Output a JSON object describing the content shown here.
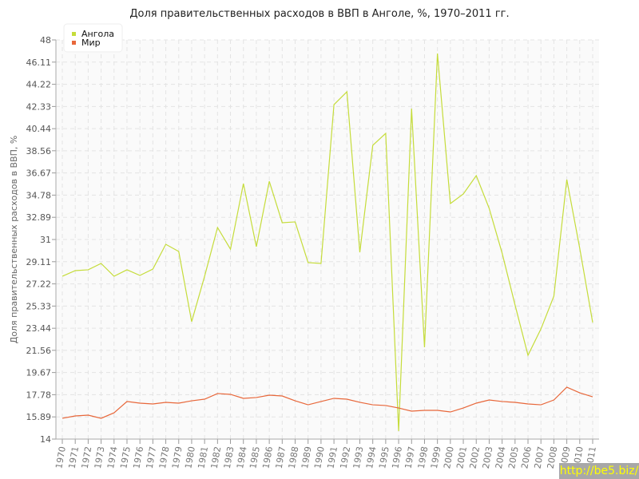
{
  "chart_data": {
    "type": "line",
    "title": "Доля правительственных расходов в ВВП в Анголе, %, 1970–2011 гг.",
    "xlabel": "",
    "ylabel": "Доля правительственных расходов в ВВП, %",
    "ylim": [
      14,
      48
    ],
    "yticks": [
      "14",
      "15.89",
      "17.78",
      "19.67",
      "21.56",
      "23.44",
      "25.33",
      "27.22",
      "29.11",
      "31",
      "32.89",
      "34.78",
      "36.67",
      "38.56",
      "40.44",
      "42.33",
      "44.22",
      "46.11",
      "48"
    ],
    "x": [
      1970,
      1971,
      1972,
      1973,
      1974,
      1975,
      1976,
      1977,
      1978,
      1979,
      1980,
      1981,
      1982,
      1983,
      1984,
      1985,
      1986,
      1987,
      1988,
      1989,
      1990,
      1991,
      1992,
      1993,
      1994,
      1995,
      1996,
      1997,
      1998,
      1999,
      2000,
      2001,
      2002,
      2003,
      2004,
      2005,
      2006,
      2007,
      2008,
      2009,
      2010,
      2011
    ],
    "grid": true,
    "legend_placement": "top-left",
    "series": [
      {
        "name": "Ангола",
        "color": "#c5dc3a",
        "values": [
          27.87,
          28.35,
          28.42,
          28.96,
          27.87,
          28.42,
          27.94,
          28.48,
          30.59,
          29.98,
          24.0,
          27.87,
          32.02,
          30.18,
          35.76,
          30.39,
          35.96,
          32.43,
          32.5,
          29.03,
          28.96,
          42.49,
          43.58,
          29.91,
          39.02,
          40.04,
          14.68,
          42.15,
          21.82,
          46.84,
          34.06,
          34.88,
          36.44,
          33.65,
          29.84,
          25.42,
          21.14,
          23.38,
          26.17,
          36.1,
          30.25,
          23.93
        ]
      },
      {
        "name": "Мир",
        "color": "#e8673a",
        "values": [
          15.77,
          15.97,
          16.04,
          15.77,
          16.24,
          17.2,
          17.06,
          16.99,
          17.13,
          17.06,
          17.26,
          17.4,
          17.88,
          17.81,
          17.47,
          17.54,
          17.74,
          17.67,
          17.26,
          16.92,
          17.2,
          17.47,
          17.4,
          17.13,
          16.92,
          16.86,
          16.65,
          16.38,
          16.45,
          16.45,
          16.31,
          16.65,
          17.06,
          17.33,
          17.2,
          17.13,
          16.99,
          16.92,
          17.33,
          18.42,
          17.94,
          17.6
        ]
      }
    ]
  },
  "watermark": "http://be5.biz/"
}
